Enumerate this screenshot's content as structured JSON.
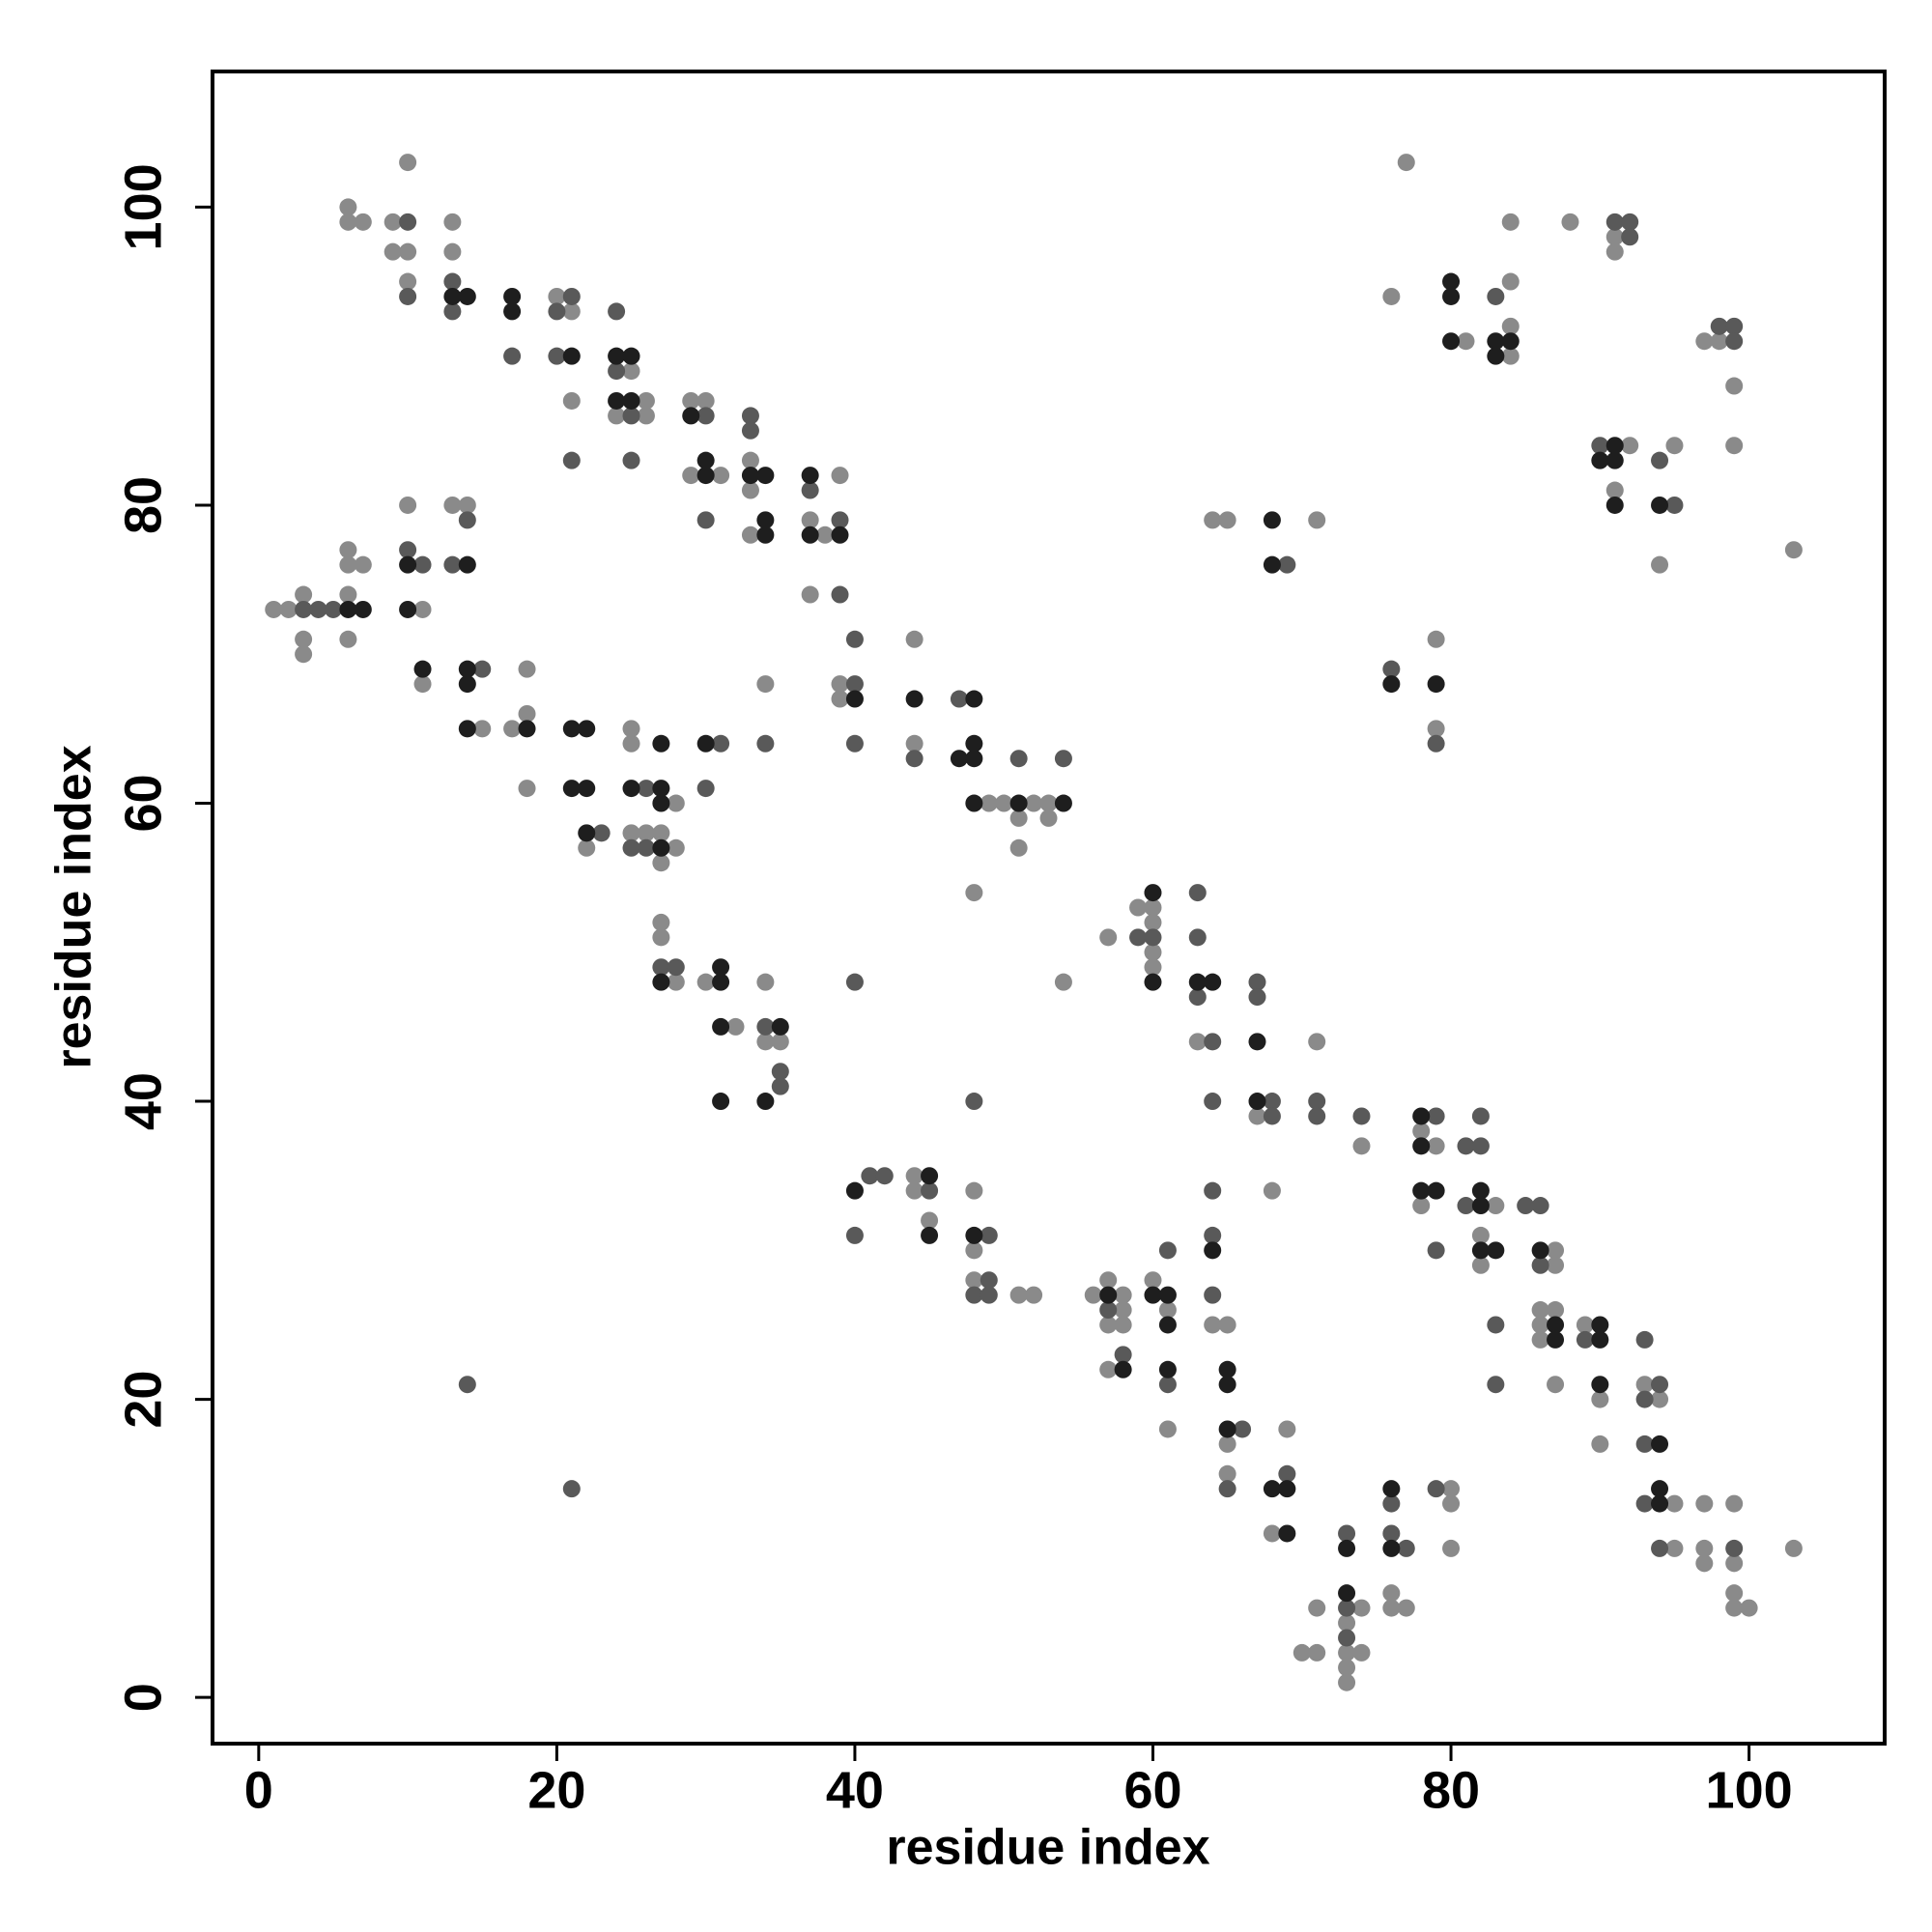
{
  "chart_data": {
    "type": "scatter",
    "xlabel": "residue index",
    "ylabel": "residue index",
    "xlim": [
      -3.1,
      109.1
    ],
    "ylim": [
      -3.1,
      109.1
    ],
    "xticks": [
      0,
      20,
      40,
      60,
      80,
      100
    ],
    "yticks": [
      0,
      20,
      40,
      60,
      80,
      100
    ],
    "grid": false,
    "series": [
      {
        "color": "#8a8a8a",
        "x": [
          6,
          6,
          7,
          9,
          10,
          9,
          10,
          10,
          13,
          13,
          20,
          21,
          21,
          25,
          26,
          24,
          26,
          29,
          30,
          29,
          31,
          33,
          33,
          33,
          39,
          37,
          38,
          37,
          39,
          39,
          44,
          44,
          49,
          50,
          51,
          52,
          53,
          53,
          51,
          48,
          54,
          1,
          2,
          3,
          3,
          3,
          6,
          6,
          7,
          6,
          6,
          10,
          11,
          13,
          14,
          11,
          15,
          17,
          18,
          18,
          18,
          22,
          25,
          25,
          28,
          25,
          26,
          27,
          28,
          27,
          34,
          27,
          27,
          28,
          30,
          32,
          34,
          34,
          35,
          44,
          44,
          45,
          48,
          48,
          48,
          51,
          52,
          57,
          59,
          60,
          60,
          60,
          60,
          63,
          67,
          71,
          74,
          68,
          56,
          57,
          58,
          58,
          57,
          58,
          57,
          60,
          61,
          61,
          64,
          65,
          65,
          65,
          68,
          69,
          70,
          71,
          71,
          73,
          73,
          73,
          73,
          74,
          74,
          76,
          76,
          77,
          80,
          80,
          80,
          78,
          79,
          78,
          83,
          82,
          82,
          87,
          87,
          86,
          87,
          86,
          86,
          87,
          89,
          90,
          90,
          93,
          94,
          95,
          95,
          97,
          97,
          97,
          99,
          99,
          99,
          99,
          100,
          103,
          76,
          77,
          81,
          84,
          84,
          84,
          84,
          88,
          91,
          91,
          97,
          98,
          99,
          99,
          92,
          91,
          95,
          94,
          103,
          64,
          65,
          71,
          79,
          79
        ],
        "y": [
          100,
          99,
          99,
          99,
          103,
          97,
          97,
          95,
          99,
          97,
          94,
          93,
          87,
          89,
          87,
          86,
          86,
          87,
          87,
          82,
          82,
          83,
          81,
          78,
          82,
          79,
          78,
          74,
          68,
          67,
          71,
          64,
          60,
          60,
          59,
          60,
          60,
          59,
          57,
          54,
          48,
          73,
          73,
          74,
          71,
          70,
          77,
          76,
          76,
          74,
          71,
          80,
          73,
          80,
          80,
          68,
          65,
          65,
          69,
          66,
          61,
          57,
          65,
          64,
          60,
          58,
          58,
          58,
          57,
          56,
          68,
          52,
          51,
          48,
          48,
          45,
          48,
          44,
          44,
          35,
          34,
          32,
          34,
          30,
          28,
          27,
          27,
          51,
          53,
          53,
          52,
          50,
          49,
          44,
          39,
          44,
          37,
          34,
          27,
          28,
          27,
          26,
          25,
          25,
          22,
          28,
          26,
          18,
          25,
          25,
          17,
          15,
          11,
          18,
          3,
          3,
          6,
          5,
          3,
          2,
          1,
          6,
          3,
          7,
          6,
          6,
          14,
          13,
          10,
          38,
          37,
          33,
          33,
          31,
          29,
          30,
          29,
          26,
          26,
          25,
          24,
          21,
          25,
          20,
          17,
          21,
          20,
          13,
          10,
          13,
          10,
          9,
          13,
          9,
          7,
          6,
          6,
          10,
          94,
          103,
          91,
          95,
          99,
          90,
          92,
          99,
          98,
          97,
          91,
          91,
          88,
          84,
          84,
          81,
          84,
          76,
          77,
          79,
          79,
          79,
          71,
          65
        ]
      },
      {
        "color": "#595959",
        "x": [
          10,
          10,
          13,
          13,
          17,
          21,
          20,
          20,
          21,
          24,
          24,
          25,
          25,
          30,
          30,
          33,
          33,
          37,
          39,
          39,
          40,
          40,
          40,
          44,
          47,
          51,
          54,
          3,
          4,
          5,
          10,
          11,
          14,
          13,
          15,
          23,
          26,
          25,
          26,
          31,
          30,
          34,
          27,
          28,
          34,
          35,
          35,
          40,
          14,
          21,
          48,
          41,
          42,
          40,
          45,
          49,
          49,
          48,
          49,
          59,
          60,
          63,
          63,
          63,
          64,
          67,
          67,
          64,
          68,
          68,
          71,
          71,
          74,
          57,
          58,
          61,
          61,
          64,
          64,
          64,
          66,
          65,
          69,
          73,
          73,
          73,
          76,
          76,
          77,
          79,
          79,
          79,
          81,
          82,
          82,
          81,
          83,
          83,
          85,
          86,
          86,
          89,
          93,
          94,
          93,
          93,
          93,
          94,
          99,
          83,
          91,
          92,
          92,
          98,
          99,
          99,
          90,
          94,
          95,
          69,
          76,
          79
        ],
        "y": [
          99,
          94,
          95,
          93,
          90,
          94,
          93,
          90,
          83,
          93,
          89,
          86,
          83,
          86,
          79,
          86,
          85,
          81,
          79,
          74,
          71,
          68,
          64,
          63,
          67,
          63,
          63,
          73,
          73,
          73,
          77,
          76,
          79,
          76,
          69,
          58,
          61,
          57,
          57,
          64,
          61,
          64,
          49,
          49,
          45,
          42,
          41,
          48,
          21,
          14,
          40,
          35,
          35,
          31,
          34,
          31,
          28,
          27,
          27,
          51,
          51,
          54,
          51,
          47,
          44,
          48,
          47,
          40,
          40,
          39,
          40,
          39,
          39,
          26,
          23,
          30,
          21,
          34,
          31,
          27,
          18,
          14,
          15,
          11,
          6,
          4,
          13,
          11,
          10,
          14,
          39,
          30,
          37,
          37,
          39,
          33,
          25,
          21,
          33,
          33,
          29,
          24,
          24,
          21,
          20,
          17,
          13,
          10,
          10,
          94,
          99,
          99,
          98,
          92,
          92,
          91,
          84,
          83,
          80,
          76,
          69,
          64
        ]
      },
      {
        "color": "#1e1e1e",
        "x": [
          13,
          14,
          17,
          17,
          21,
          24,
          25,
          24,
          25,
          29,
          30,
          30,
          33,
          34,
          34,
          34,
          37,
          37,
          39,
          40,
          44,
          48,
          48,
          47,
          48,
          48,
          51,
          54,
          6,
          7,
          10,
          10,
          14,
          11,
          14,
          14,
          14,
          18,
          21,
          22,
          21,
          22,
          22,
          25,
          27,
          27,
          27,
          27,
          30,
          27,
          31,
          31,
          31,
          35,
          31,
          34,
          40,
          45,
          45,
          48,
          60,
          60,
          63,
          64,
          67,
          67,
          57,
          58,
          60,
          61,
          61,
          61,
          64,
          65,
          65,
          65,
          68,
          69,
          69,
          73,
          73,
          76,
          76,
          78,
          78,
          78,
          79,
          82,
          82,
          82,
          83,
          86,
          87,
          87,
          90,
          90,
          90,
          94,
          94,
          94,
          80,
          80,
          80,
          83,
          84,
          83,
          91,
          90,
          91,
          91,
          94,
          68,
          68,
          76,
          79
        ],
        "y": [
          94,
          94,
          94,
          93,
          90,
          90,
          90,
          87,
          87,
          86,
          83,
          82,
          82,
          82,
          79,
          78,
          82,
          78,
          78,
          67,
          67,
          67,
          64,
          63,
          63,
          60,
          60,
          60,
          73,
          73,
          76,
          73,
          76,
          69,
          69,
          68,
          65,
          65,
          65,
          65,
          61,
          61,
          58,
          61,
          64,
          61,
          60,
          57,
          64,
          48,
          49,
          48,
          45,
          45,
          40,
          40,
          34,
          35,
          31,
          31,
          54,
          48,
          48,
          48,
          44,
          40,
          27,
          22,
          27,
          27,
          25,
          22,
          30,
          22,
          21,
          18,
          14,
          14,
          11,
          10,
          7,
          14,
          10,
          39,
          37,
          34,
          34,
          34,
          33,
          30,
          30,
          30,
          25,
          24,
          25,
          24,
          21,
          17,
          14,
          13,
          95,
          94,
          91,
          91,
          91,
          90,
          84,
          83,
          83,
          80,
          80,
          79,
          76,
          68,
          68
        ]
      }
    ]
  }
}
